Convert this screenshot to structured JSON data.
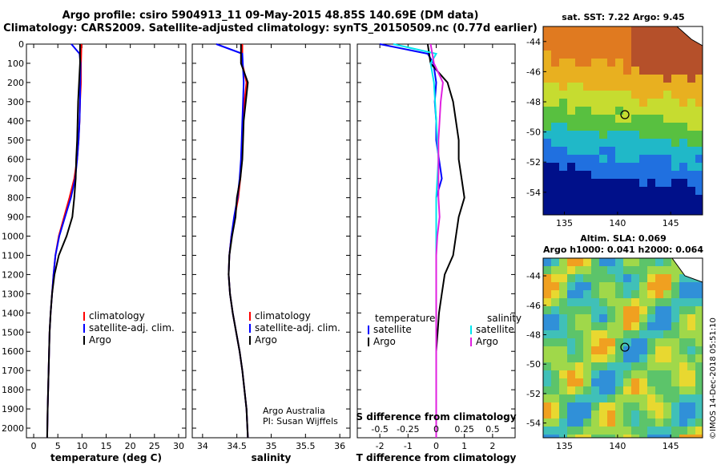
{
  "header": {
    "line1": "Argo profile: csiro 5904913_11 09-May-2015 48.85S 140.69E (DM data)",
    "line2": "Climatology: CARS2009. Satellite-adjusted climatology: synTS_20150509.nc (0.77d earlier)"
  },
  "colors": {
    "climatology": "#ff0000",
    "satellite": "#0000ff",
    "argo": "#000000",
    "satellite_salinity": "#00e5ee",
    "argo_salinity": "#e020e0"
  },
  "chart_data": [
    {
      "type": "line",
      "id": "temperature",
      "xlabel": "temperature (deg C)",
      "ylabel": "",
      "xlim": [
        -1.5,
        31.5
      ],
      "ylim": [
        2050,
        0
      ],
      "xticks": [
        "0",
        "5",
        "10",
        "15",
        "20",
        "25",
        "30"
      ],
      "yticks": [
        "0",
        "100",
        "200",
        "300",
        "400",
        "500",
        "600",
        "700",
        "800",
        "900",
        "1000",
        "1100",
        "1200",
        "1300",
        "1400",
        "1500",
        "1600",
        "1700",
        "1800",
        "1900",
        "2000"
      ],
      "legend": [
        "climatology",
        "satellite-adj. clim.",
        "Argo"
      ],
      "legend_position": "lower-right",
      "series": [
        {
          "name": "climatology",
          "color": "#ff0000",
          "x": [
            9.9,
            9.8,
            9.8,
            9.6,
            9.5,
            9.3,
            9.0,
            8.4,
            7.4,
            6.3,
            5.2,
            4.5,
            4.1,
            3.8,
            3.5,
            3.3,
            3.2,
            3.1,
            3.0,
            2.9,
            2.8
          ],
          "y": [
            0,
            100,
            200,
            300,
            400,
            500,
            600,
            700,
            800,
            900,
            1000,
            1100,
            1200,
            1300,
            1400,
            1500,
            1600,
            1700,
            1800,
            1900,
            2050
          ]
        },
        {
          "name": "satellite-adj. clim.",
          "color": "#0000ff",
          "x": [
            7.8,
            9.5,
            9.7,
            9.6,
            9.5,
            9.3,
            9.0,
            8.6,
            7.7,
            6.5,
            5.3,
            4.5,
            4.1,
            3.8,
            3.5,
            3.3,
            3.2,
            3.1,
            3.0,
            2.9,
            2.8
          ],
          "y": [
            0,
            50,
            100,
            300,
            400,
            500,
            600,
            700,
            800,
            900,
            1000,
            1100,
            1200,
            1300,
            1400,
            1500,
            1600,
            1700,
            1800,
            1900,
            2050
          ]
        },
        {
          "name": "Argo",
          "color": "#000000",
          "x": [
            9.6,
            9.6,
            9.4,
            9.2,
            9.1,
            9.0,
            8.8,
            8.7,
            8.4,
            8.0,
            6.8,
            5.2,
            4.3,
            3.8,
            3.5,
            3.3,
            3.2,
            3.1,
            3.0,
            2.9,
            2.8
          ],
          "y": [
            0,
            100,
            200,
            300,
            400,
            500,
            600,
            700,
            800,
            900,
            1000,
            1100,
            1200,
            1300,
            1400,
            1500,
            1600,
            1700,
            1800,
            1900,
            2050
          ]
        }
      ]
    },
    {
      "type": "line",
      "id": "salinity",
      "xlabel": "salinity",
      "xlim": [
        33.85,
        36.15
      ],
      "ylim": [
        2050,
        0
      ],
      "xticks": [
        "34",
        "34.5",
        "35",
        "35.5",
        "36"
      ],
      "legend": [
        "climatology",
        "satellite-adj. clim.",
        "Argo"
      ],
      "legend_position": "lower-right",
      "annotation": [
        "Argo Australia",
        "PI: Susan Wijffels"
      ],
      "series": [
        {
          "name": "climatology",
          "color": "#ff0000",
          "x": [
            34.58,
            34.58,
            34.64,
            34.61,
            34.59,
            34.58,
            34.57,
            34.55,
            34.52,
            34.47,
            34.42,
            34.39,
            34.38,
            34.4,
            34.44,
            34.49,
            34.54,
            34.58,
            34.61,
            34.64,
            34.66
          ],
          "y": [
            0,
            100,
            200,
            300,
            400,
            500,
            600,
            700,
            800,
            900,
            1000,
            1100,
            1200,
            1300,
            1400,
            1500,
            1600,
            1700,
            1800,
            1900,
            2050
          ]
        },
        {
          "name": "satellite-adj. clim.",
          "color": "#0000ff",
          "x": [
            34.2,
            34.58,
            34.6,
            34.59,
            34.58,
            34.57,
            34.56,
            34.54,
            34.51,
            34.46,
            34.42,
            34.39,
            34.38,
            34.4,
            34.44,
            34.49,
            34.54,
            34.58,
            34.61,
            34.64,
            34.66
          ],
          "y": [
            0,
            50,
            200,
            300,
            400,
            500,
            600,
            700,
            800,
            900,
            1000,
            1100,
            1200,
            1300,
            1400,
            1500,
            1600,
            1700,
            1800,
            1900,
            2050
          ]
        },
        {
          "name": "Argo",
          "color": "#000000",
          "x": [
            34.56,
            34.56,
            34.66,
            34.63,
            34.6,
            34.59,
            34.58,
            34.55,
            34.5,
            34.48,
            34.43,
            34.39,
            34.38,
            34.4,
            34.44,
            34.49,
            34.54,
            34.58,
            34.61,
            34.64,
            34.66
          ],
          "y": [
            0,
            100,
            200,
            300,
            400,
            500,
            600,
            700,
            800,
            900,
            1000,
            1100,
            1200,
            1300,
            1400,
            1500,
            1600,
            1700,
            1800,
            1900,
            2050
          ]
        }
      ]
    },
    {
      "type": "line",
      "id": "difference",
      "xlabel": "T difference from climatology",
      "xlabel2": "S difference from climatology",
      "xlim": [
        -2.8,
        2.8
      ],
      "ylim": [
        2050,
        0
      ],
      "xticks": [
        "-2",
        "-1",
        "0",
        "1",
        "2"
      ],
      "xticks2": [
        "-0.5",
        "-0.25",
        "0",
        "0.25",
        "0.5"
      ],
      "legend_left": {
        "title": "temperature",
        "items": [
          "satellite",
          "Argo"
        ]
      },
      "legend_right": {
        "title": "salinity",
        "items": [
          "satellite",
          "Argo"
        ]
      },
      "legend_position": "lower",
      "series": [
        {
          "name": "satellite",
          "quantity": "temperature",
          "color": "#0000ff",
          "x": [
            -2.0,
            -0.3,
            -0.1,
            0.0,
            -0.05,
            0.0,
            0.0,
            0.1,
            0.2,
            0.0,
            0.0,
            0.0,
            0.0,
            0.0,
            0.0,
            0.0,
            0.0,
            0.0,
            0.0,
            0.0,
            0.0
          ],
          "y": [
            0,
            50,
            100,
            200,
            300,
            400,
            500,
            600,
            700,
            800,
            900,
            1000,
            1100,
            1200,
            1300,
            1400,
            1500,
            1600,
            1700,
            1800,
            2050
          ]
        },
        {
          "name": "Argo",
          "quantity": "temperature",
          "color": "#000000",
          "x": [
            -0.3,
            -0.2,
            0.4,
            0.6,
            0.7,
            0.8,
            0.8,
            0.9,
            1.0,
            0.8,
            0.7,
            0.6,
            0.3,
            0.2,
            0.1,
            0.05,
            0.0,
            0.0,
            0.0,
            0.0,
            0.0
          ],
          "y": [
            0,
            100,
            200,
            300,
            400,
            500,
            600,
            700,
            800,
            900,
            1000,
            1100,
            1200,
            1300,
            1400,
            1500,
            1600,
            1700,
            1800,
            1900,
            2050
          ]
        },
        {
          "name": "satellite",
          "quantity": "salinity",
          "color": "#00e5ee",
          "x": [
            -0.38,
            0.0,
            -0.05,
            -0.02,
            -0.01,
            0.0,
            0.01,
            0.02,
            0.01,
            0.0,
            0.0,
            0.0,
            0.0,
            0.0,
            0.0,
            0.0,
            0.0,
            0.0,
            0.0,
            0.0,
            0.0
          ],
          "y": [
            0,
            50,
            100,
            200,
            300,
            400,
            500,
            600,
            700,
            800,
            900,
            1000,
            1100,
            1200,
            1300,
            1400,
            1500,
            1600,
            1700,
            1800,
            2050
          ]
        },
        {
          "name": "Argo",
          "quantity": "salinity",
          "color": "#e020e0",
          "x": [
            -0.05,
            -0.02,
            0.06,
            0.04,
            0.03,
            0.02,
            0.02,
            0.02,
            0.02,
            0.03,
            0.01,
            0.0,
            0.0,
            0.0,
            0.0,
            0.0,
            0.0,
            0.0,
            0.0,
            0.0,
            0.0
          ],
          "y": [
            0,
            100,
            200,
            300,
            400,
            500,
            600,
            700,
            800,
            900,
            1000,
            1100,
            1200,
            1300,
            1400,
            1500,
            1600,
            1700,
            1800,
            1900,
            2050
          ]
        }
      ]
    },
    {
      "type": "heatmap",
      "id": "sst_map",
      "title": "sat. SST: 7.22 Argo: 9.45",
      "xlim": [
        133,
        148
      ],
      "ylim": [
        -55.5,
        -43
      ],
      "xticks": [
        "135",
        "140",
        "145"
      ],
      "yticks": [
        "-44",
        "-46",
        "-48",
        "-50",
        "-52",
        "-54"
      ],
      "marker": {
        "lon": 140.69,
        "lat": -48.85
      }
    },
    {
      "type": "heatmap",
      "id": "sla_map",
      "title": "Altim. SLA: 0.069",
      "subtitle": "Argo h1000: 0.041 h2000: 0.064",
      "xlim": [
        133,
        148
      ],
      "ylim": [
        -55,
        -42.8
      ],
      "xticks": [
        "135",
        "140",
        "145"
      ],
      "yticks": [
        "-44",
        "-46",
        "-48",
        "-50",
        "-52",
        "-54"
      ],
      "marker": {
        "lon": 140.69,
        "lat": -48.85
      }
    }
  ],
  "footer": {
    "stamp": "©IMOS 14-Dec-2018 05:51:10"
  }
}
